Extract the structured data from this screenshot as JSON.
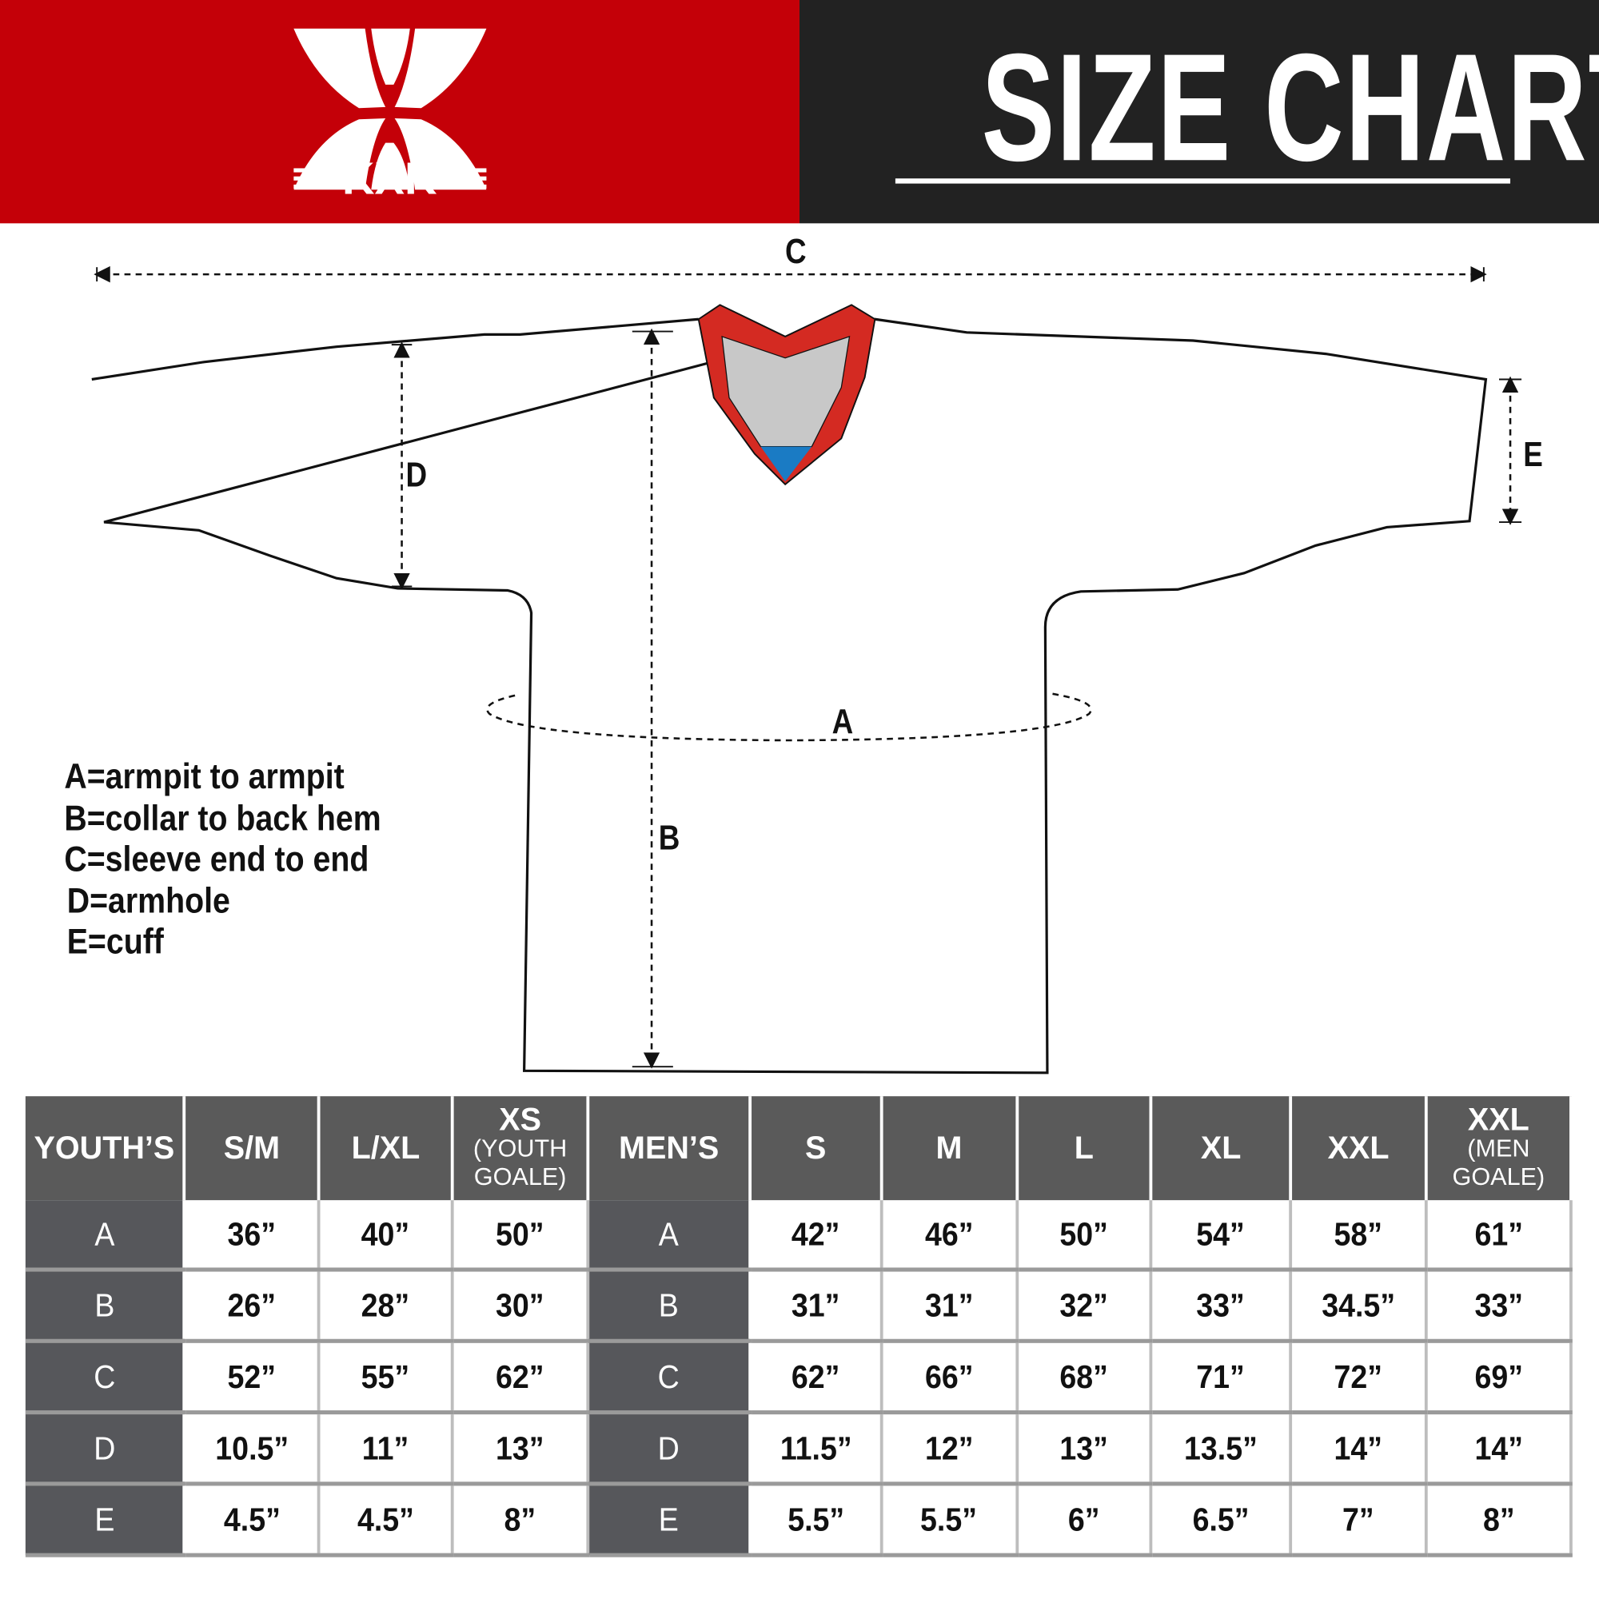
{
  "brand": {
    "logo_text": "KXK",
    "red": "#c40008",
    "dark": "#222222"
  },
  "header": {
    "title": "SIZE CHART"
  },
  "diagram": {
    "labels": {
      "a": "A",
      "b": "B",
      "c": "C",
      "d": "D",
      "e": "E"
    },
    "collar_colors": {
      "trim": "#d42a22",
      "inner": "#c8c8c8",
      "accent": "#1a7bc4"
    }
  },
  "legend": [
    "A=armpit to armpit",
    "B=collar to back hem",
    "C=sleeve end to end",
    "D=armhole",
    "E=cuff"
  ],
  "table": {
    "headers": [
      {
        "main": "YOUTH’S",
        "sub": ""
      },
      {
        "main": "S/M",
        "sub": ""
      },
      {
        "main": "L/XL",
        "sub": ""
      },
      {
        "main": "XS",
        "sub": "(YOUTH GOALE)"
      },
      {
        "main": "MEN’S",
        "sub": ""
      },
      {
        "main": "S",
        "sub": ""
      },
      {
        "main": "M",
        "sub": ""
      },
      {
        "main": "L",
        "sub": ""
      },
      {
        "main": "XL",
        "sub": ""
      },
      {
        "main": "XXL",
        "sub": ""
      },
      {
        "main": "XXL",
        "sub": "(MEN GOALE)"
      }
    ],
    "rows": [
      [
        "A",
        "36”",
        "40”",
        "50”",
        "A",
        "42”",
        "46”",
        "50”",
        "54”",
        "58”",
        "61”"
      ],
      [
        "B",
        "26”",
        "28”",
        "30”",
        "B",
        "31”",
        "31”",
        "32”",
        "33”",
        "34.5”",
        "33”"
      ],
      [
        "C",
        "52”",
        "55”",
        "62”",
        "C",
        "62”",
        "66”",
        "68”",
        "71”",
        "72”",
        "69”"
      ],
      [
        "D",
        "10.5”",
        "11”",
        "13”",
        "D",
        "11.5”",
        "12”",
        "13”",
        "13.5”",
        "14”",
        "14”"
      ],
      [
        "E",
        "4.5”",
        "4.5”",
        "8”",
        "E",
        "5.5”",
        "5.5”",
        "6”",
        "6.5”",
        "7”",
        "8”"
      ]
    ]
  }
}
